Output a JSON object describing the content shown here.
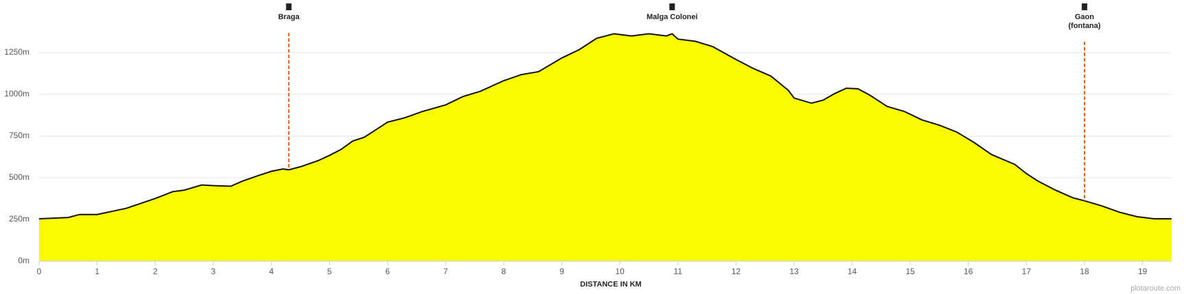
{
  "chart_data": {
    "type": "area",
    "x_label": "DISTANCE IN KM",
    "credit": "plotaroute.com",
    "x": [
      0,
      0.5,
      0.7,
      1.0,
      1.5,
      2.0,
      2.3,
      2.5,
      2.8,
      3.0,
      3.3,
      3.5,
      3.8,
      4.0,
      4.2,
      4.3,
      4.5,
      4.8,
      5.0,
      5.2,
      5.4,
      5.6,
      5.8,
      6.0,
      6.3,
      6.6,
      7.0,
      7.3,
      7.6,
      8.0,
      8.3,
      8.6,
      9.0,
      9.3,
      9.6,
      9.9,
      10.2,
      10.5,
      10.8,
      10.9,
      11.0,
      11.3,
      11.6,
      12.0,
      12.3,
      12.6,
      12.9,
      13.0,
      13.3,
      13.5,
      13.7,
      13.9,
      14.1,
      14.3,
      14.6,
      14.9,
      15.2,
      15.5,
      15.8,
      16.1,
      16.4,
      16.8,
      17.0,
      17.2,
      17.5,
      17.8,
      18.0,
      18.3,
      18.6,
      18.9,
      19.2,
      19.5
    ],
    "values": [
      254,
      262,
      280,
      280,
      317,
      376,
      417,
      426,
      457,
      453,
      449,
      480,
      516,
      539,
      553,
      548,
      566,
      602,
      634,
      670,
      720,
      743,
      788,
      833,
      860,
      897,
      937,
      987,
      1019,
      1082,
      1118,
      1136,
      1218,
      1268,
      1336,
      1363,
      1350,
      1363,
      1350,
      1363,
      1331,
      1318,
      1286,
      1209,
      1155,
      1110,
      1024,
      978,
      947,
      965,
      1005,
      1037,
      1033,
      996,
      928,
      897,
      847,
      815,
      774,
      711,
      639,
      580,
      525,
      480,
      426,
      380,
      362,
      331,
      294,
      267,
      254,
      254
    ],
    "color": "#f9fb00",
    "line_color": "#111111",
    "xlim": [
      0,
      19.5
    ],
    "ylim": [
      0,
      1500
    ],
    "xticks": [
      0,
      1,
      2,
      3,
      4,
      5,
      6,
      7,
      8,
      9,
      10,
      11,
      12,
      13,
      14,
      15,
      16,
      17,
      18,
      19
    ],
    "yticks": [
      {
        "value": 0,
        "label": "0m"
      },
      {
        "value": 250,
        "label": "250m"
      },
      {
        "value": 500,
        "label": "500m"
      },
      {
        "value": 750,
        "label": "750m"
      },
      {
        "value": 1000,
        "label": "1000m"
      },
      {
        "value": 1250,
        "label": "1250m"
      }
    ],
    "grid": true,
    "markers": [
      {
        "x": 4.3,
        "lines": [
          "Braga"
        ]
      },
      {
        "x": 10.9,
        "lines": [
          "Malga Colonei"
        ]
      },
      {
        "x": 18.0,
        "lines": [
          "Gaon",
          "(fontana)"
        ]
      }
    ],
    "marker_color": "#e05a1e"
  }
}
